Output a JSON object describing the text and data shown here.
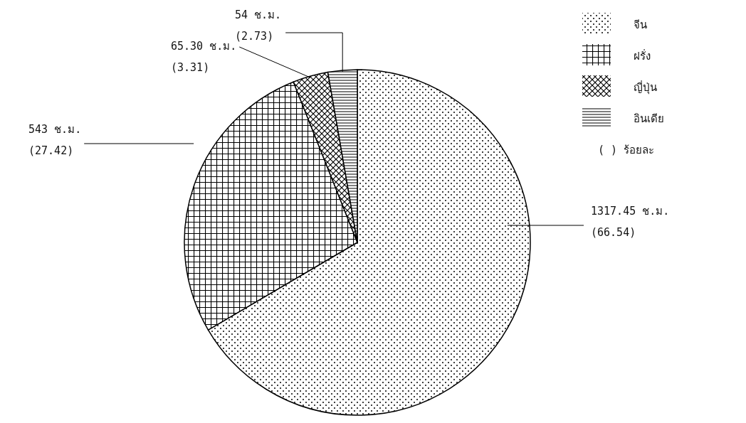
{
  "chart_data": {
    "type": "pie",
    "categories": [
      "จีน",
      "ฝรั่ง",
      "ญี่ปุ่น",
      "อินเดีย"
    ],
    "values": [
      1317.45,
      543,
      65.3,
      54
    ],
    "colors": [
      "#000000",
      "#000000",
      "#000000",
      "#000000"
    ],
    "value_labels": [
      "1317.45 ช.ม.\n(66.54)",
      "543 ช.ม.\n(27.42)",
      "65.30 ช.ม.\n(3.31)",
      "54 ช.ม.\n(2.73)"
    ],
    "legend": "top right",
    "annotations": [
      "( ) ร้อยละ"
    ]
  }
}
